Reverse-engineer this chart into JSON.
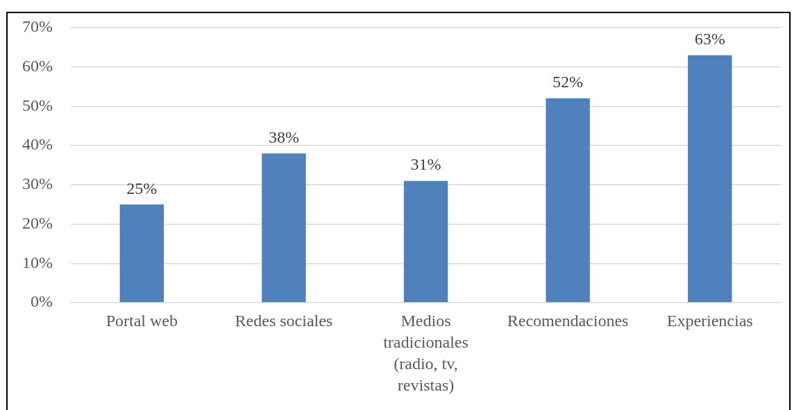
{
  "chart_data": {
    "type": "bar",
    "categories": [
      "Portal web",
      "Redes sociales",
      "Medios tradicionales (radio, tv, revistas)",
      "Recomendaciones",
      "Experiencias"
    ],
    "values": [
      25,
      38,
      31,
      52,
      63
    ],
    "value_labels": [
      "25%",
      "38%",
      "31%",
      "52%",
      "63%"
    ],
    "color": "#4f81bd",
    "ylim": [
      0,
      70
    ],
    "yticks": [
      {
        "value": 0,
        "label": "0%"
      },
      {
        "value": 10,
        "label": "10%"
      },
      {
        "value": 20,
        "label": "20%"
      },
      {
        "value": 30,
        "label": "30%"
      },
      {
        "value": 40,
        "label": "40%"
      },
      {
        "value": 50,
        "label": "50%"
      },
      {
        "value": 60,
        "label": "60%"
      },
      {
        "value": 70,
        "label": "70%"
      }
    ],
    "grid": "y"
  }
}
